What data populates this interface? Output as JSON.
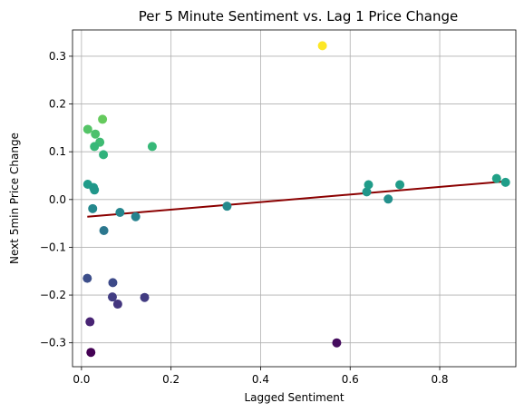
{
  "chart_data": {
    "type": "scatter",
    "title": "Per 5 Minute Sentiment vs. Lag 1 Price Change",
    "xlabel": "Lagged Sentiment",
    "ylabel": "Next 5min Price Change",
    "xlim": [
      -0.02,
      0.97
    ],
    "ylim": [
      -0.35,
      0.355
    ],
    "x_ticks": [
      0.0,
      0.2,
      0.4,
      0.6,
      0.8
    ],
    "x_tick_labels": [
      "0.0",
      "0.2",
      "0.4",
      "0.6",
      "0.8"
    ],
    "y_ticks": [
      -0.3,
      -0.2,
      -0.1,
      0.0,
      0.1,
      0.2,
      0.3
    ],
    "y_tick_labels": [
      "−0.3",
      "−0.2",
      "−0.1",
      "0.0",
      "0.1",
      "0.2",
      "0.3"
    ],
    "grid": true,
    "colormap": "viridis",
    "color_encodes": "y",
    "points": [
      {
        "x": 0.538,
        "y": 0.322
      },
      {
        "x": 0.047,
        "y": 0.168
      },
      {
        "x": 0.014,
        "y": 0.147
      },
      {
        "x": 0.031,
        "y": 0.137
      },
      {
        "x": 0.041,
        "y": 0.12
      },
      {
        "x": 0.029,
        "y": 0.111
      },
      {
        "x": 0.158,
        "y": 0.111
      },
      {
        "x": 0.049,
        "y": 0.094
      },
      {
        "x": 0.014,
        "y": 0.032
      },
      {
        "x": 0.027,
        "y": 0.025
      },
      {
        "x": 0.029,
        "y": 0.02
      },
      {
        "x": 0.025,
        "y": -0.019
      },
      {
        "x": 0.086,
        "y": -0.027
      },
      {
        "x": 0.121,
        "y": -0.036
      },
      {
        "x": 0.05,
        "y": -0.065
      },
      {
        "x": 0.325,
        "y": -0.014
      },
      {
        "x": 0.637,
        "y": 0.016
      },
      {
        "x": 0.641,
        "y": 0.031
      },
      {
        "x": 0.685,
        "y": 0.001
      },
      {
        "x": 0.711,
        "y": 0.031
      },
      {
        "x": 0.927,
        "y": 0.044
      },
      {
        "x": 0.947,
        "y": 0.036
      },
      {
        "x": 0.013,
        "y": -0.165
      },
      {
        "x": 0.07,
        "y": -0.174
      },
      {
        "x": 0.069,
        "y": -0.204
      },
      {
        "x": 0.141,
        "y": -0.205
      },
      {
        "x": 0.081,
        "y": -0.219
      },
      {
        "x": 0.019,
        "y": -0.256
      },
      {
        "x": 0.021,
        "y": -0.32
      },
      {
        "x": 0.57,
        "y": -0.3
      }
    ],
    "fit_line": {
      "x": [
        0.013,
        0.947
      ],
      "y": [
        -0.036,
        0.038
      ],
      "color": "#8b0000"
    }
  }
}
